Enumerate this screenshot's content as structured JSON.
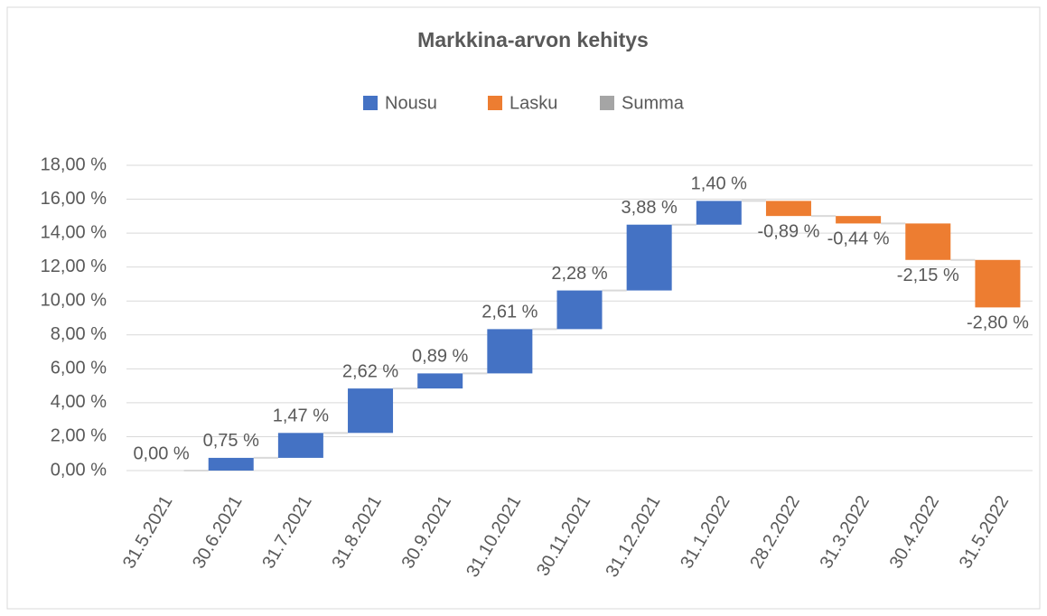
{
  "chart_data": {
    "type": "waterfall",
    "title": "Markkina-arvon kehitys",
    "legend": [
      {
        "name": "Nousu",
        "color": "#4472c4"
      },
      {
        "name": "Lasku",
        "color": "#ed7d31"
      },
      {
        "name": "Summa",
        "color": "#a5a5a5"
      }
    ],
    "categories": [
      "31.5.2021",
      "30.6.2021",
      "31.7.2021",
      "31.8.2021",
      "30.9.2021",
      "31.10.2021",
      "30.11.2021",
      "31.12.2021",
      "31.1.2022",
      "28.2.2022",
      "31.3.2022",
      "30.4.2022",
      "31.5.2022"
    ],
    "values": [
      0,
      0.75,
      1.47,
      2.62,
      0.89,
      2.61,
      2.28,
      3.88,
      1.4,
      -0.89,
      -0.44,
      -2.15,
      -2.8
    ],
    "value_labels": [
      "0,00 %",
      "0,75 %",
      "1,47 %",
      "2,62 %",
      "0,89 %",
      "2,61 %",
      "2,28 %",
      "3,88 %",
      "1,40 %",
      "-0,89 %",
      "-0,44 %",
      "-2,15 %",
      "-2,80 %"
    ],
    "ylim": [
      0,
      18
    ],
    "yticks": [
      {
        "value": 0,
        "label": "0,00 %"
      },
      {
        "value": 2,
        "label": "2,00 %"
      },
      {
        "value": 4,
        "label": "4,00 %"
      },
      {
        "value": 6,
        "label": "6,00 %"
      },
      {
        "value": 8,
        "label": "8,00 %"
      },
      {
        "value": 10,
        "label": "10,00 %"
      },
      {
        "value": 12,
        "label": "12,00 %"
      },
      {
        "value": 14,
        "label": "14,00 %"
      },
      {
        "value": 16,
        "label": "16,00 %"
      },
      {
        "value": 18,
        "label": "18,00 %"
      }
    ],
    "grid": true
  }
}
